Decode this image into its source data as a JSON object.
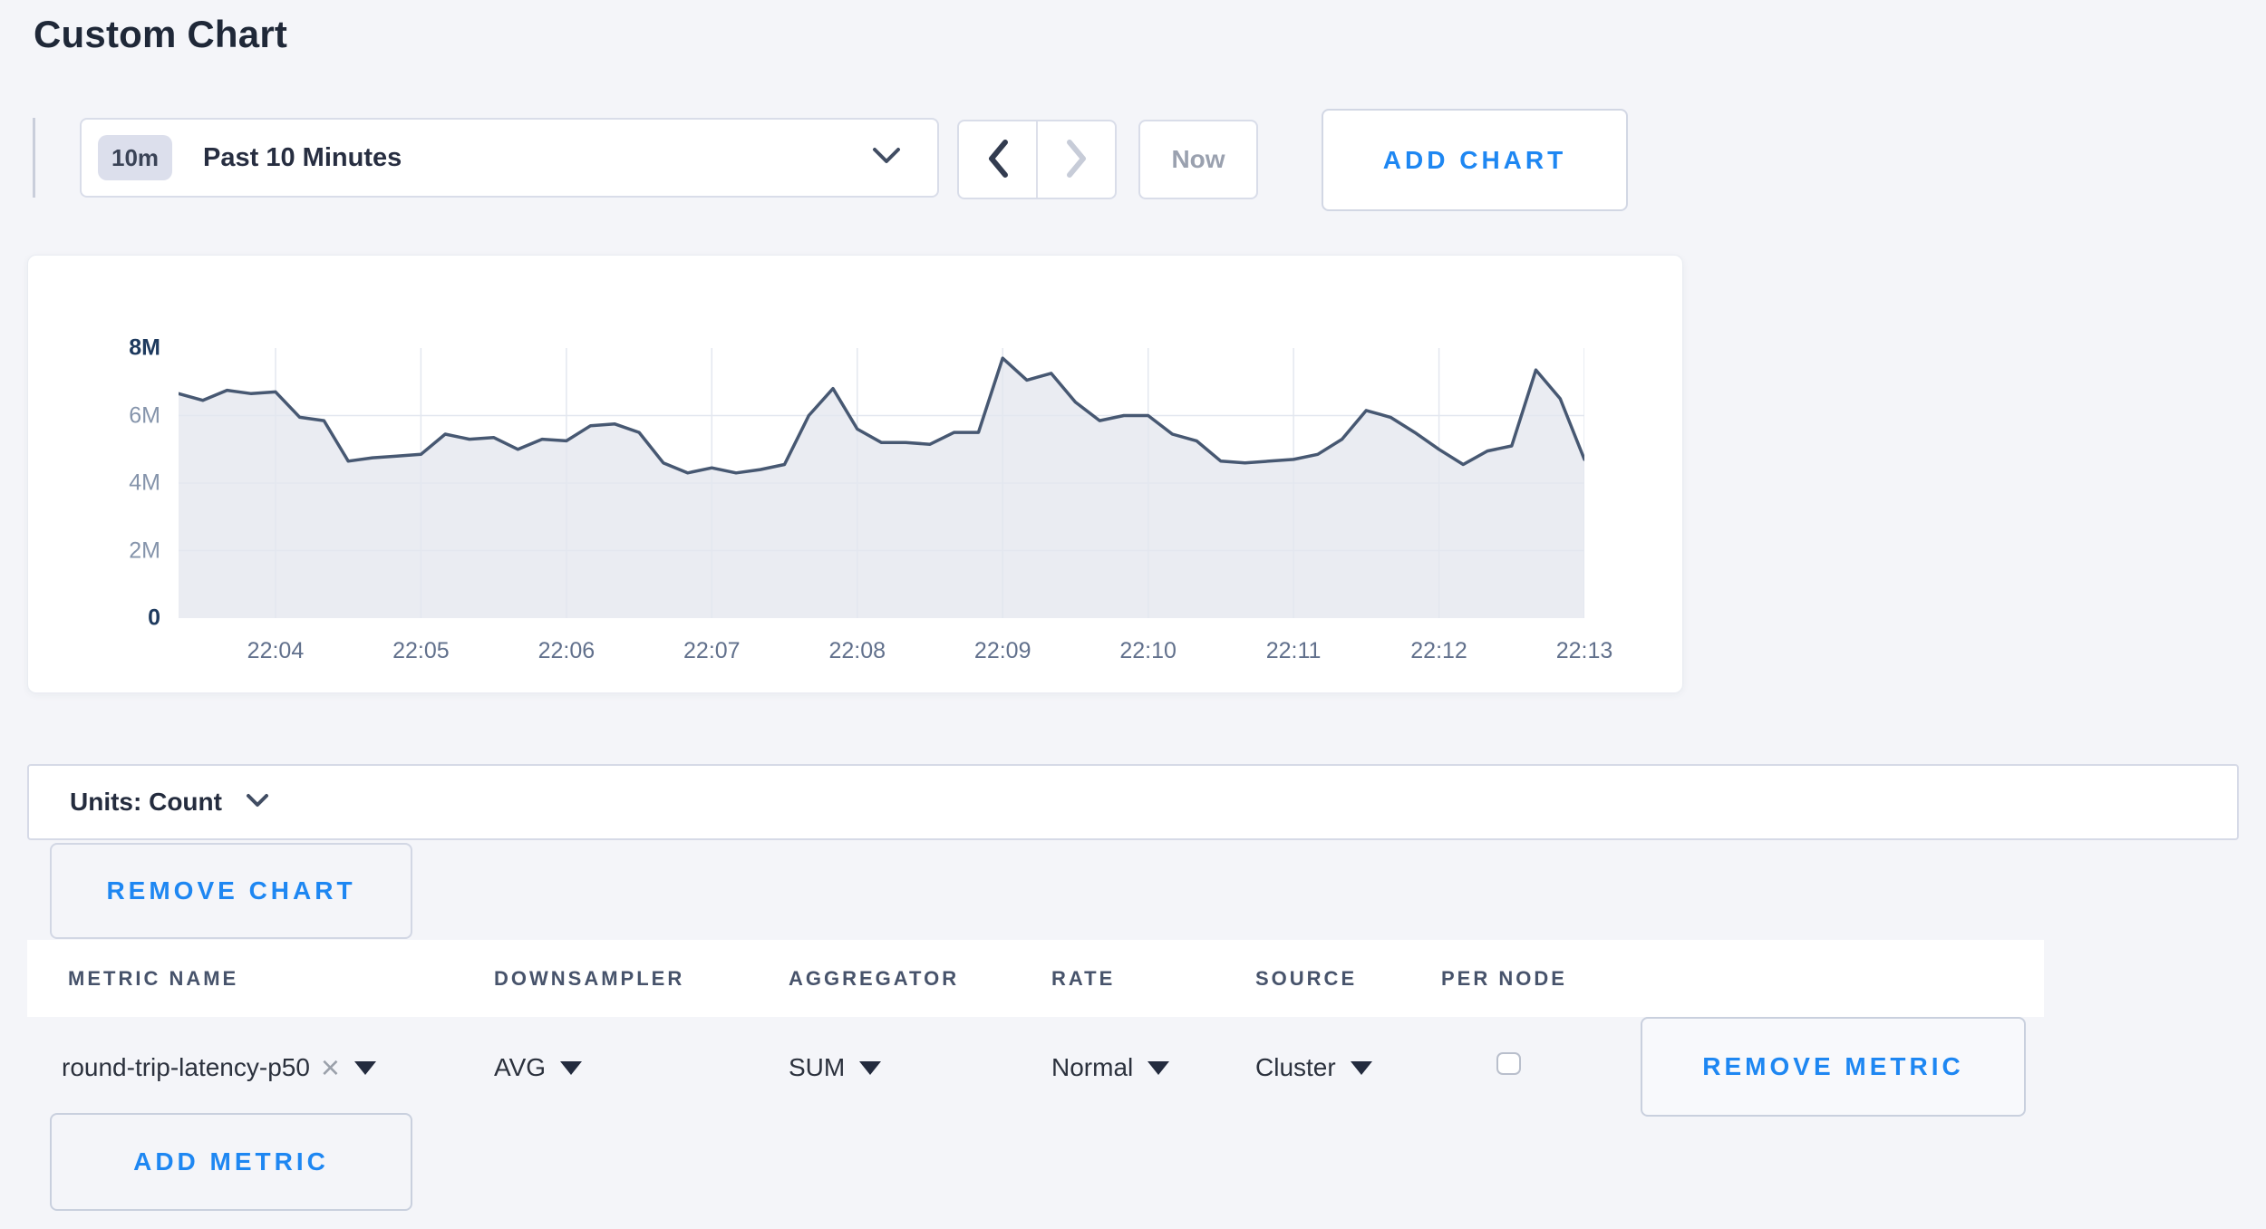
{
  "page": {
    "title": "Custom Chart"
  },
  "toolbar": {
    "time_range": {
      "badge": "10m",
      "label": "Past 10 Minutes"
    },
    "now_label": "Now",
    "add_chart_label": "ADD CHART"
  },
  "chart_panel": {
    "units_label": "Units: Count",
    "remove_chart_label": "REMOVE CHART",
    "add_metric_label": "ADD METRIC"
  },
  "table": {
    "columns": [
      "METRIC NAME",
      "DOWNSAMPLER",
      "AGGREGATOR",
      "RATE",
      "SOURCE",
      "PER NODE"
    ],
    "metric": {
      "name": "round-trip-latency-p50",
      "downsampler": "AVG",
      "aggregator": "SUM",
      "rate": "Normal",
      "source": "Cluster",
      "per_node_checked": false,
      "remove_label": "REMOVE METRIC"
    }
  },
  "colors": {
    "accent_blue": "#1e87f2",
    "text_dark": "#242c3e",
    "slate_header": "#47536b",
    "page_background": "#f4f5f9"
  },
  "chart_data": {
    "type": "area",
    "title": "",
    "series_name": "round-trip-latency-p50",
    "x_start_time": "22:03:20",
    "point_interval_seconds": 10,
    "x_tick_labels": [
      "22:04",
      "22:05",
      "22:06",
      "22:07",
      "22:08",
      "22:09",
      "22:10",
      "22:11",
      "22:12",
      "22:13"
    ],
    "x_tick_indices": [
      4,
      10,
      16,
      22,
      28,
      34,
      40,
      46,
      52,
      58
    ],
    "y_ticks": [
      {
        "label": "8M",
        "value_m": 8,
        "strong": true
      },
      {
        "label": "6M",
        "value_m": 6,
        "strong": false
      },
      {
        "label": "4M",
        "value_m": 4,
        "strong": false
      },
      {
        "label": "2M",
        "value_m": 2,
        "strong": false
      },
      {
        "label": "0",
        "value_m": 0,
        "strong": true
      }
    ],
    "ylim_millions": [
      0,
      8
    ],
    "grid_horizontal_values_m": [
      6,
      4,
      2
    ],
    "grid_on": true,
    "legend": "none",
    "values_millions": [
      6.65,
      6.45,
      6.75,
      6.65,
      6.7,
      5.95,
      5.85,
      4.65,
      4.75,
      4.8,
      4.85,
      5.45,
      5.3,
      5.35,
      5.0,
      5.3,
      5.25,
      5.7,
      5.75,
      5.5,
      4.6,
      4.3,
      4.45,
      4.3,
      4.4,
      4.55,
      6.0,
      6.8,
      5.6,
      5.2,
      5.2,
      5.15,
      5.5,
      5.5,
      7.7,
      7.05,
      7.25,
      6.4,
      5.85,
      6.0,
      6.0,
      5.45,
      5.25,
      4.65,
      4.6,
      4.65,
      4.7,
      4.85,
      5.3,
      6.15,
      5.95,
      5.5,
      5.0,
      4.55,
      4.95,
      5.1,
      7.35,
      6.5,
      4.7
    ],
    "line_color": "#475872",
    "fill_color": "#eaecf2",
    "grid_color": "#e3e7ef"
  }
}
